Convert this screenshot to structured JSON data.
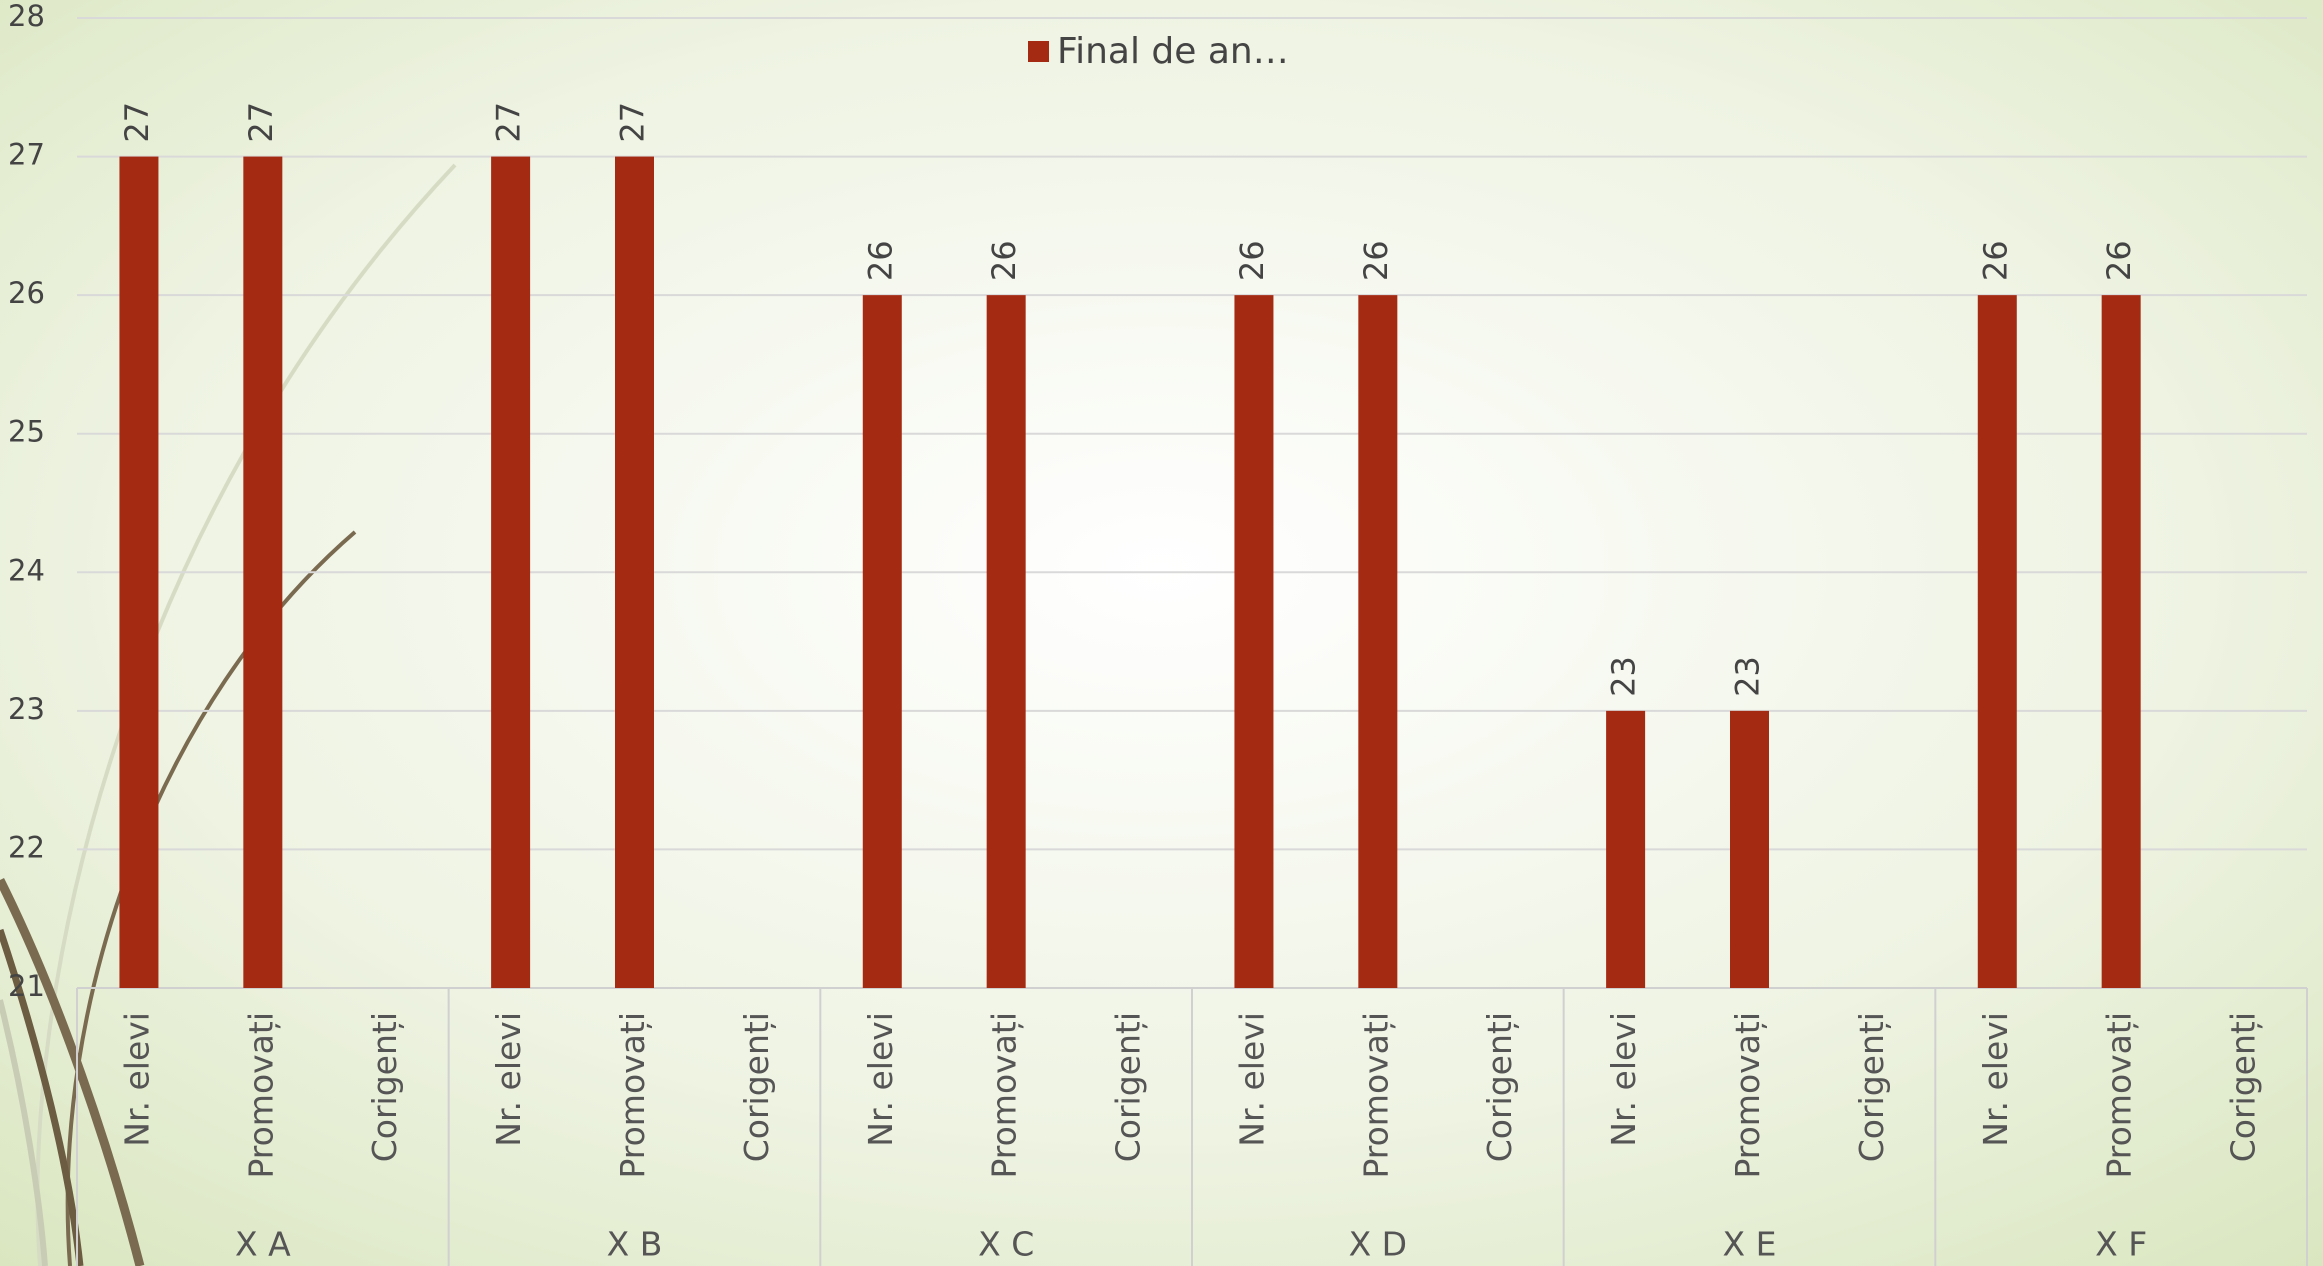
{
  "chart_data": {
    "type": "bar",
    "groups": [
      "X A",
      "X B",
      "X C",
      "X D",
      "X E",
      "X F"
    ],
    "categories": [
      "Nr. elevi",
      "Promovați",
      "Corigenți",
      "Nr. elevi",
      "Promovați",
      "Corigenți",
      "Nr. elevi",
      "Promovați",
      "Corigenți",
      "Nr. elevi",
      "Promovați",
      "Corigenți",
      "Nr. elevi",
      "Promovați",
      "Corigenți",
      "Nr. elevi",
      "Promovați",
      "Corigenți"
    ],
    "series": [
      {
        "name": "Final de an…",
        "color": "#a52a12",
        "values": [
          27,
          27,
          null,
          27,
          27,
          null,
          26,
          26,
          null,
          26,
          26,
          null,
          23,
          23,
          null,
          26,
          26,
          null
        ]
      }
    ],
    "ylim": [
      21,
      28
    ],
    "yticks": [
      21,
      22,
      23,
      24,
      25,
      26,
      27,
      28
    ],
    "grid": true,
    "legend": "top"
  }
}
